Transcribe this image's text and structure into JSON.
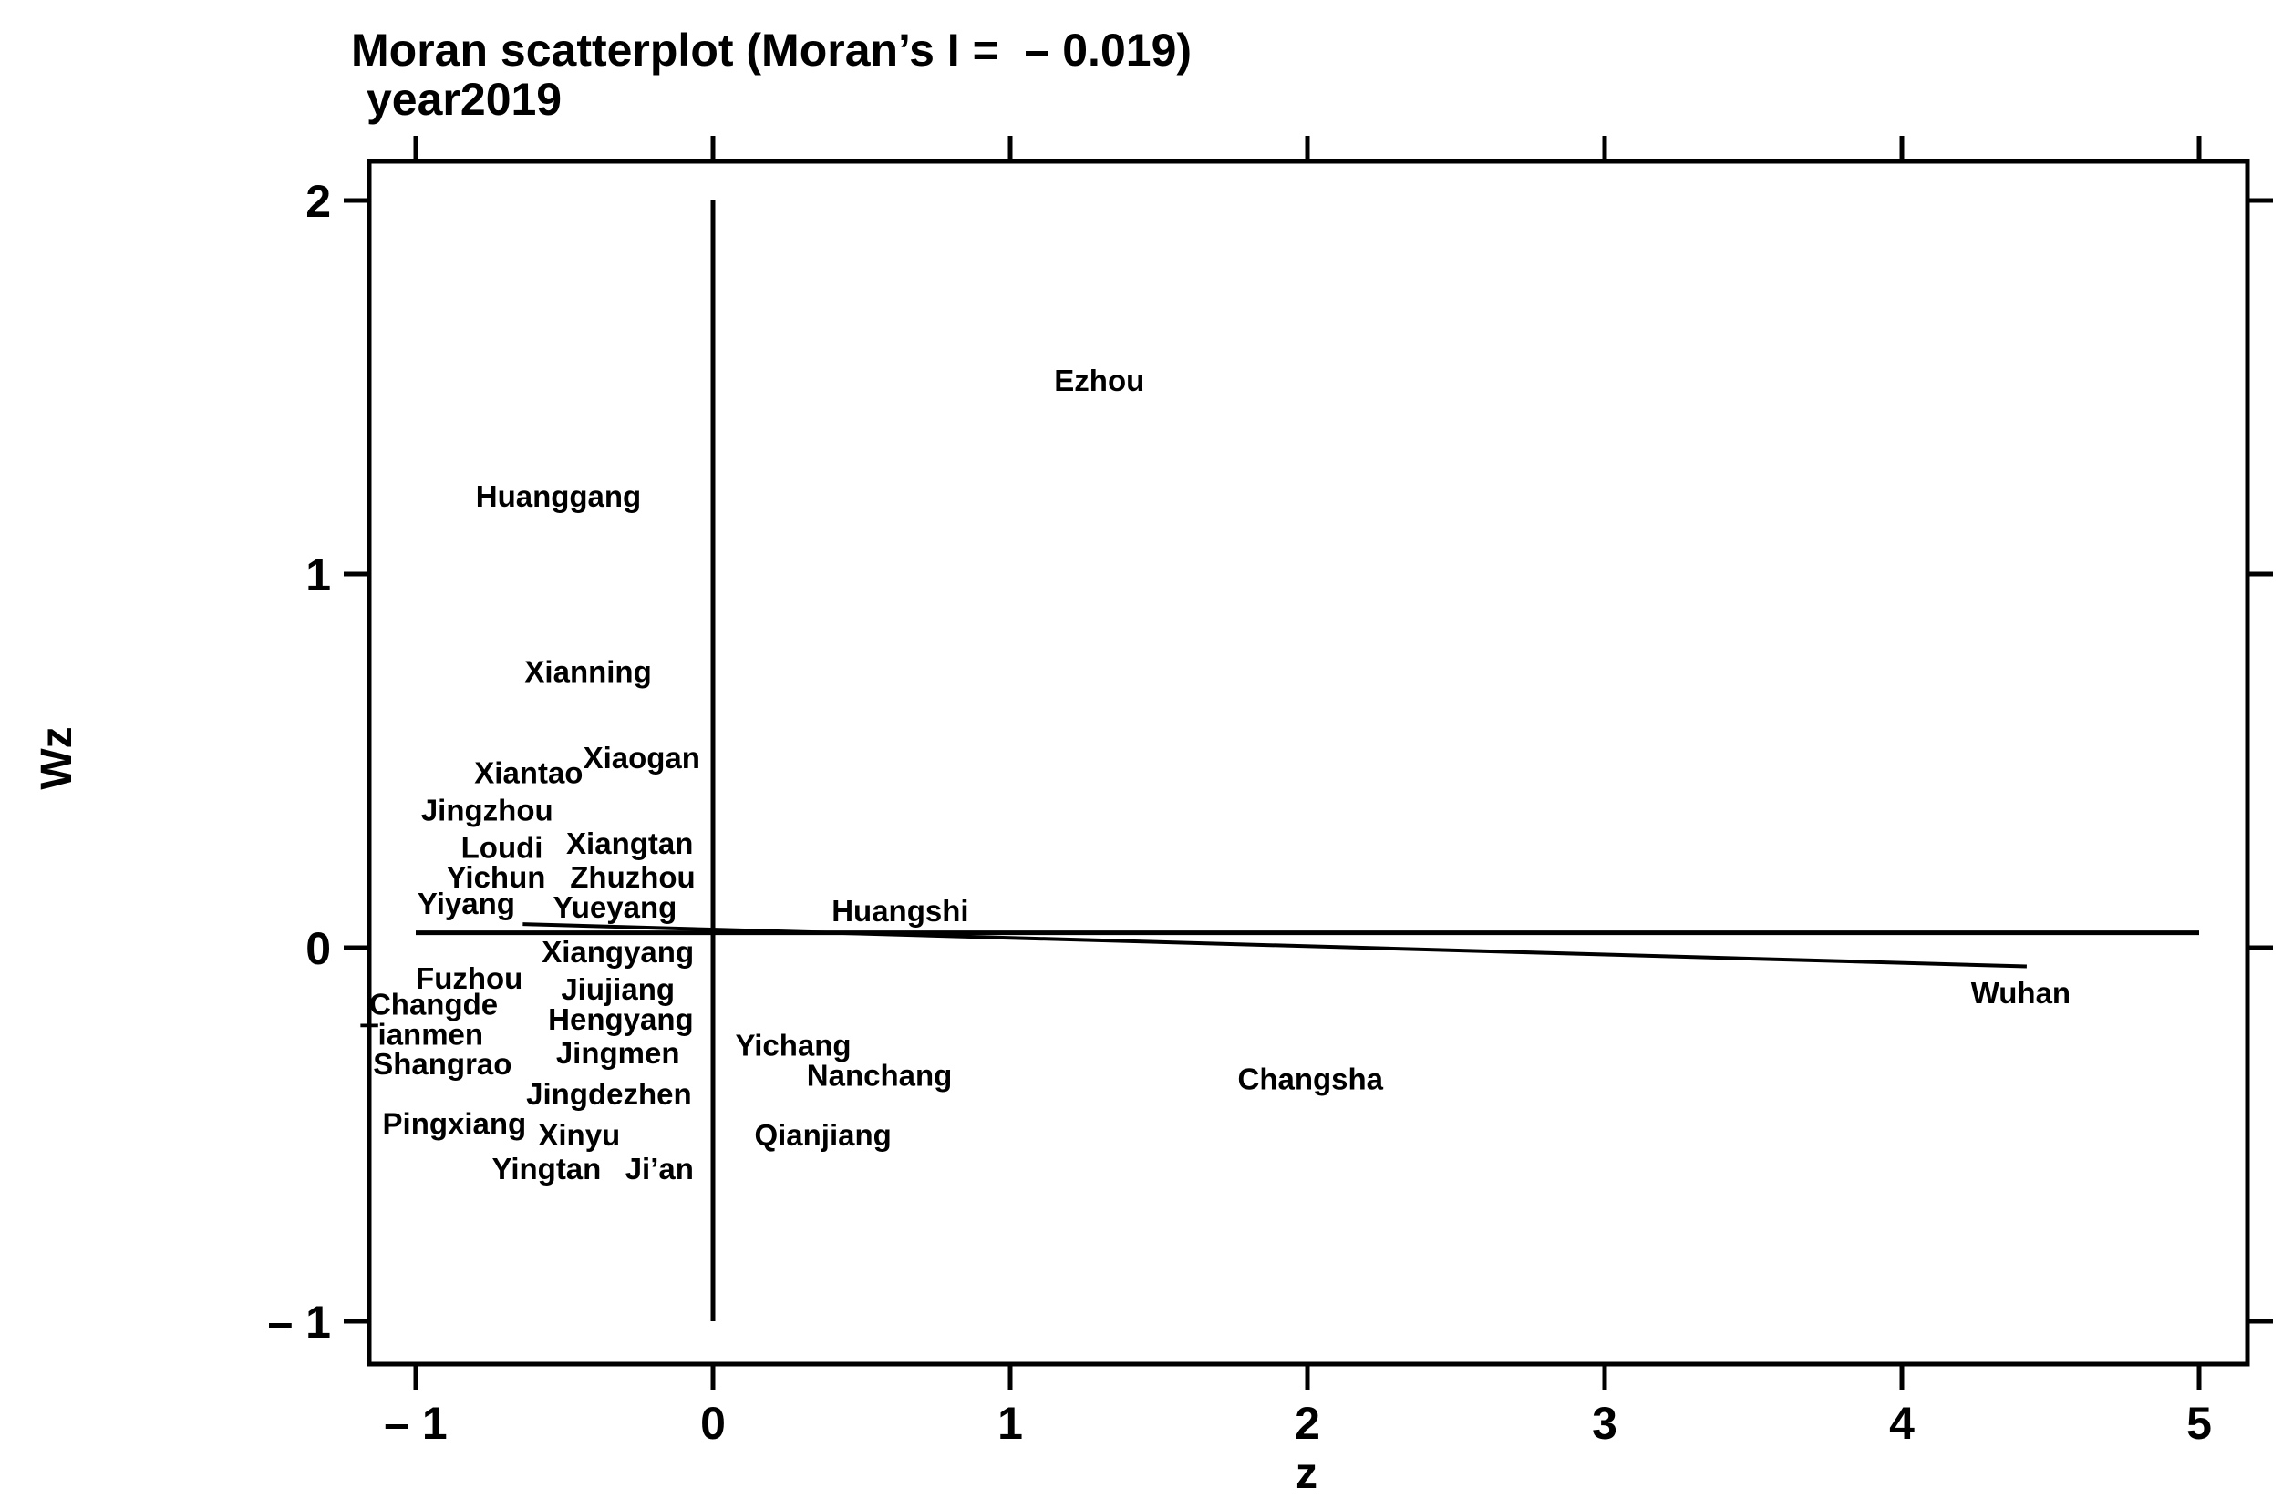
{
  "chart_data": {
    "type": "scatter",
    "title": "Moran scatterplot (Moran’s I =  – 0.019)",
    "subtitle": "year2019",
    "xlabel": "z",
    "ylabel": "Wz",
    "xlim": [
      -1.15,
      5.15
    ],
    "ylim": [
      -1.12,
      2.12
    ],
    "xticks": [
      -1,
      0,
      1,
      2,
      3,
      4,
      5
    ],
    "xtick_labels": [
      "– 1",
      "0",
      "1",
      "2",
      "3",
      "4",
      "5"
    ],
    "yticks": [
      -1,
      0,
      1,
      2
    ],
    "ytick_labels": [
      "– 1",
      "0",
      "1",
      "2"
    ],
    "reference_lines": {
      "vertical_x": 0,
      "vertical_y_range": [
        -1,
        2
      ],
      "horizontal_y": 0.04,
      "horizontal_x_range": [
        -1,
        5
      ]
    },
    "fit_line": {
      "x": [
        -0.64,
        4.42
      ],
      "y": [
        0.063,
        -0.05
      ]
    },
    "points": [
      {
        "label": "Ezhou",
        "x": 1.3,
        "y": 1.52
      },
      {
        "label": "Huanggang",
        "x": -0.52,
        "y": 1.21
      },
      {
        "label": "Xianning",
        "x": -0.42,
        "y": 0.74
      },
      {
        "label": "Xiaogan",
        "x": -0.24,
        "y": 0.51
      },
      {
        "label": "Xiantao",
        "x": -0.62,
        "y": 0.47
      },
      {
        "label": "Jingzhou",
        "x": -0.76,
        "y": 0.37
      },
      {
        "label": "Xiangtan",
        "x": -0.28,
        "y": 0.28
      },
      {
        "label": "Loudi",
        "x": -0.71,
        "y": 0.27
      },
      {
        "label": "Yichun",
        "x": -0.73,
        "y": 0.19
      },
      {
        "label": "Zhuzhou",
        "x": -0.27,
        "y": 0.19
      },
      {
        "label": "Yiyang",
        "x": -0.83,
        "y": 0.12
      },
      {
        "label": "Yueyang",
        "x": -0.33,
        "y": 0.11
      },
      {
        "label": "Huangshi",
        "x": 0.63,
        "y": 0.1
      },
      {
        "label": "Xiangyang",
        "x": -0.32,
        "y": -0.01
      },
      {
        "label": "Fuzhou",
        "x": -0.82,
        "y": -0.08
      },
      {
        "label": "Jiujiang",
        "x": -0.32,
        "y": -0.11
      },
      {
        "label": "Changde",
        "x": -0.94,
        "y": -0.15
      },
      {
        "label": "Hengyang",
        "x": -0.31,
        "y": -0.19
      },
      {
        "label": "Tianmen",
        "x": -0.98,
        "y": -0.23
      },
      {
        "label": "Yichang",
        "x": 0.27,
        "y": -0.26
      },
      {
        "label": "Jingmen",
        "x": -0.32,
        "y": -0.28
      },
      {
        "label": "Shangrao",
        "x": -0.91,
        "y": -0.31
      },
      {
        "label": "Nanchang",
        "x": 0.56,
        "y": -0.34
      },
      {
        "label": "Changsha",
        "x": 2.01,
        "y": -0.35
      },
      {
        "label": "Jingdezhen",
        "x": -0.35,
        "y": -0.39
      },
      {
        "label": "Pingxiang",
        "x": -0.87,
        "y": -0.47
      },
      {
        "label": "Xinyu",
        "x": -0.45,
        "y": -0.5
      },
      {
        "label": "Qianjiang",
        "x": 0.37,
        "y": -0.5
      },
      {
        "label": "Yingtan",
        "x": -0.56,
        "y": -0.59
      },
      {
        "label": "Ji’an",
        "x": -0.18,
        "y": -0.59
      },
      {
        "label": "Wuhan",
        "x": 4.4,
        "y": -0.12
      }
    ]
  }
}
